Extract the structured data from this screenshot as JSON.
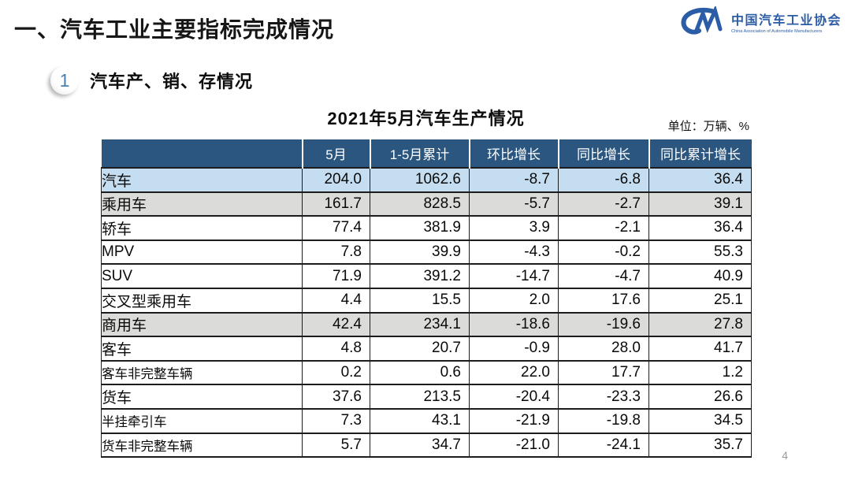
{
  "page": {
    "title": "一、汽车工业主要指标完成情况",
    "section_number": "1",
    "section_title": "汽车产、销、存情况",
    "page_number": "4"
  },
  "logo": {
    "name_cn": "中国汽车工业协会",
    "name_en": "China Association of Automobile Manufacturers"
  },
  "table": {
    "title": "2021年5月汽车生产情况",
    "unit_label": "单位：万辆、%",
    "columns": [
      "",
      "5月",
      "1-5月累计",
      "环比增长",
      "同比增长",
      "同比累计增长"
    ],
    "rows": [
      {
        "label": "汽车",
        "indent": 0,
        "style": "blue",
        "values": [
          "204.0",
          "1062.6",
          "-8.7",
          "-6.8",
          "36.4"
        ]
      },
      {
        "label": "乘用车",
        "indent": 1,
        "style": "gray",
        "values": [
          "161.7",
          "828.5",
          "-5.7",
          "-2.7",
          "39.1"
        ]
      },
      {
        "label": "轿车",
        "indent": 3,
        "style": "white",
        "values": [
          "77.4",
          "381.9",
          "3.9",
          "-2.1",
          "36.4"
        ]
      },
      {
        "label": "MPV",
        "indent": 3,
        "style": "white",
        "values": [
          "7.8",
          "39.9",
          "-4.3",
          "-0.2",
          "55.3"
        ]
      },
      {
        "label": "SUV",
        "indent": 3,
        "style": "white",
        "values": [
          "71.9",
          "391.2",
          "-14.7",
          "-4.7",
          "40.9"
        ]
      },
      {
        "label": "交叉型乘用车",
        "indent": 3,
        "style": "white",
        "values": [
          "4.4",
          "15.5",
          "2.0",
          "17.6",
          "25.1"
        ]
      },
      {
        "label": "商用车",
        "indent": 1,
        "style": "gray",
        "values": [
          "42.4",
          "234.1",
          "-18.6",
          "-19.6",
          "27.8"
        ]
      },
      {
        "label": "客车",
        "indent": 2,
        "style": "white",
        "values": [
          "4.8",
          "20.7",
          "-0.9",
          "28.0",
          "41.7"
        ]
      },
      {
        "label": "客车非完整车辆",
        "indent": 4,
        "style": "white",
        "values": [
          "0.2",
          "0.6",
          "22.0",
          "17.7",
          "1.2"
        ]
      },
      {
        "label": "货车",
        "indent": 2,
        "style": "white",
        "values": [
          "37.6",
          "213.5",
          "-20.4",
          "-23.3",
          "26.6"
        ]
      },
      {
        "label": "半挂牵引车",
        "indent": 4,
        "style": "white",
        "values": [
          "7.3",
          "43.1",
          "-21.9",
          "-19.8",
          "34.5"
        ]
      },
      {
        "label": "货车非完整车辆",
        "indent": 4,
        "style": "white",
        "values": [
          "5.7",
          "34.7",
          "-21.0",
          "-24.1",
          "35.7"
        ]
      }
    ]
  },
  "colors": {
    "header_bg": "#2B5680",
    "row_highlight_blue": "#C5DDF0",
    "row_highlight_gray": "#DBDBD9",
    "brand_blue": "#2B5CA6",
    "badge_number_blue": "#4C7FAE"
  }
}
